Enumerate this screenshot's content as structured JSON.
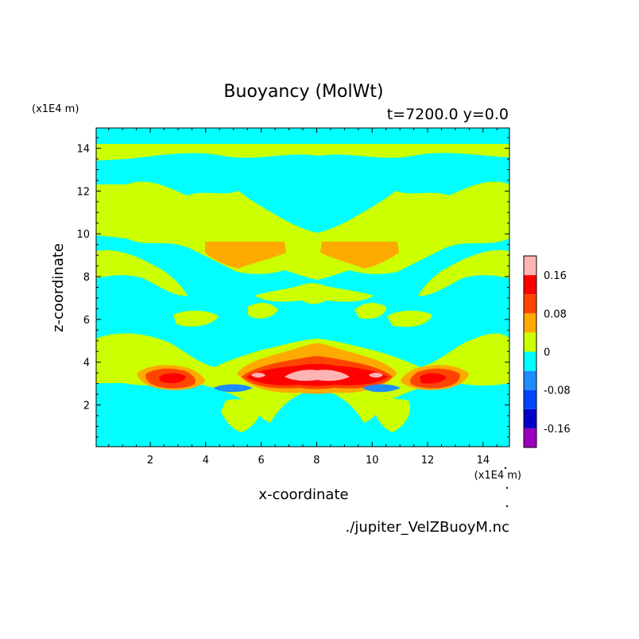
{
  "chart_data": {
    "type": "heatmap",
    "subtype": "filled-contour",
    "title": "Buoyancy (MolWt)",
    "subtitle": "t=7200.0 y=0.0",
    "xlabel": "x-coordinate",
    "ylabel": "z-coordinate",
    "x_unit": "(x1E4 m)",
    "y_unit": "(x1E4 m)",
    "source_file": "./jupiter_VelZBuoyM.nc",
    "xlim": [
      0.05,
      14.95
    ],
    "ylim": [
      0.05,
      14.95
    ],
    "x_ticks": [
      2,
      4,
      6,
      8,
      10,
      12,
      14
    ],
    "y_ticks": [
      2,
      4,
      6,
      8,
      10,
      12,
      14
    ],
    "x_tick_labels": [
      "2",
      "4",
      "6",
      "8",
      "10",
      "12",
      "14"
    ],
    "y_tick_labels": [
      "2",
      "4",
      "6",
      "8",
      "10",
      "12",
      "14"
    ],
    "colorbar": {
      "levels": [
        -0.2,
        -0.16,
        -0.12,
        -0.08,
        -0.04,
        0,
        0.04,
        0.08,
        0.12,
        0.16,
        0.2
      ],
      "colors": [
        "#9b00bf",
        "#0000c8",
        "#0046ff",
        "#1e8cff",
        "#00ffff",
        "#ccff00",
        "#ffaa00",
        "#ff4400",
        "#ff0000",
        "#ffb4b4"
      ],
      "tick_values": [
        -0.16,
        -0.08,
        0,
        0.08,
        0.16
      ],
      "tick_labels": [
        "-0.16",
        "-0.08",
        "0",
        "0.08",
        "0.16"
      ]
    },
    "background_level": "cyan band (-0.04 to 0)",
    "regions": [
      {
        "level": "0 to 0.04",
        "description": "top band z≈13.6-14.2 across full width"
      },
      {
        "level": "0 to 0.04",
        "description": "upper-central mass z≈8-12, x≈3-12"
      },
      {
        "level": "0.04 to 0.08",
        "description": "two lobes z≈8.5-9.6 at x≈5-7 and x≈8-10"
      },
      {
        "level": "0.08 to 0.20",
        "description": "central core z≈3-4.2, x≈5.3-9.6, peak at x≈7.5 z≈3.4"
      },
      {
        "level": "0.08 to 0.16",
        "description": "side cores z≈3.2-3.8 at x≈2.8 and x≈12.5"
      },
      {
        "level": "-0.12 to -0.04",
        "description": "small negative lenses z≈2.7 at x≈4.9 and x≈9.8"
      }
    ]
  }
}
